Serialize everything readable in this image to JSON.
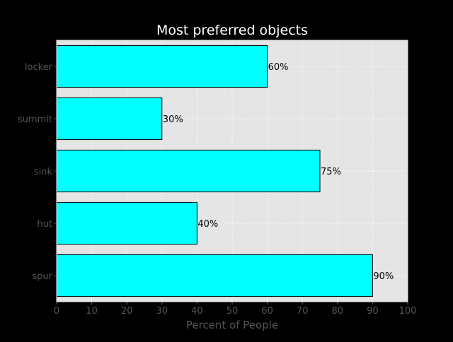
{
  "chart_data": {
    "type": "bar",
    "orientation": "horizontal",
    "title": "Most preferred objects",
    "xlabel": "Percent of People",
    "ylabel": "",
    "categories": [
      "spur",
      "hut",
      "sink",
      "summit",
      "locker"
    ],
    "values": [
      90,
      40,
      75,
      30,
      60
    ],
    "value_labels": [
      "90%",
      "40%",
      "75%",
      "30%",
      "60%"
    ],
    "xlim": [
      0,
      100
    ],
    "xticks": [
      0,
      10,
      20,
      30,
      40,
      50,
      60,
      70,
      80,
      90,
      100
    ],
    "grid": true,
    "legend": "none"
  },
  "colors": {
    "background": "#000000",
    "plot_area": "#e5e5e5",
    "bar_fill": "#00ffff",
    "bar_edge": "#000000",
    "grid": "#ffffff",
    "title": "#ffffff",
    "axis_text": "#555555",
    "value_label": "#000000"
  }
}
